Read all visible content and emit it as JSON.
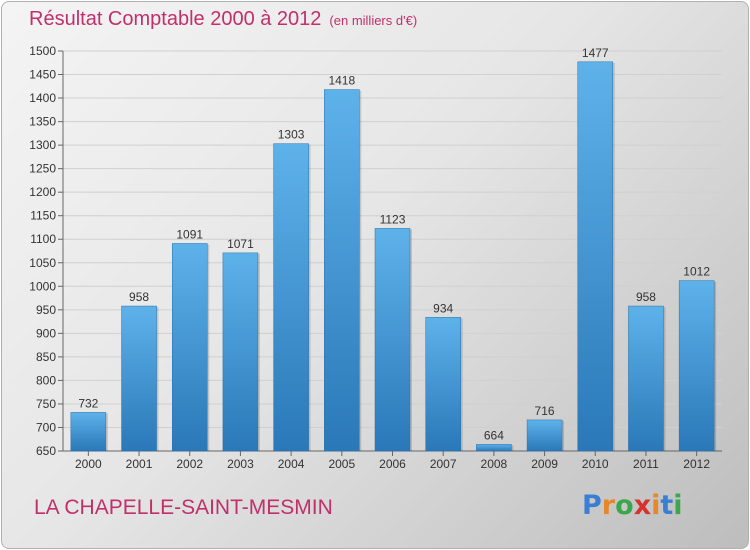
{
  "chart_data": {
    "type": "bar",
    "title": "Résultat Comptable 2000 à 2012",
    "subtitle": "(en milliers d'€)",
    "categories": [
      "2000",
      "2001",
      "2002",
      "2003",
      "2004",
      "2005",
      "2006",
      "2007",
      "2008",
      "2009",
      "2010",
      "2011",
      "2012"
    ],
    "values": [
      732,
      958,
      1091,
      1071,
      1303,
      1418,
      1123,
      934,
      664,
      716,
      1477,
      958,
      1012
    ],
    "ylim": [
      650,
      1500
    ],
    "yticks": [
      650,
      700,
      750,
      800,
      850,
      900,
      950,
      1000,
      1050,
      1100,
      1150,
      1200,
      1250,
      1300,
      1350,
      1400,
      1450,
      1500
    ],
    "grid": true,
    "bar_color": "#3b8fd0",
    "title_color": "#c0306a"
  },
  "footer": {
    "commune": "LA CHAPELLE-SAINT-MESMIN"
  },
  "logo": {
    "letters": [
      "P",
      "r",
      "o",
      "x",
      "i",
      "t",
      "i"
    ],
    "colors": [
      "#3a7fd4",
      "#e8862a",
      "#3aa74a",
      "#d6322e",
      "#e8862a",
      "#3a7fd4",
      "#3aa74a"
    ]
  }
}
